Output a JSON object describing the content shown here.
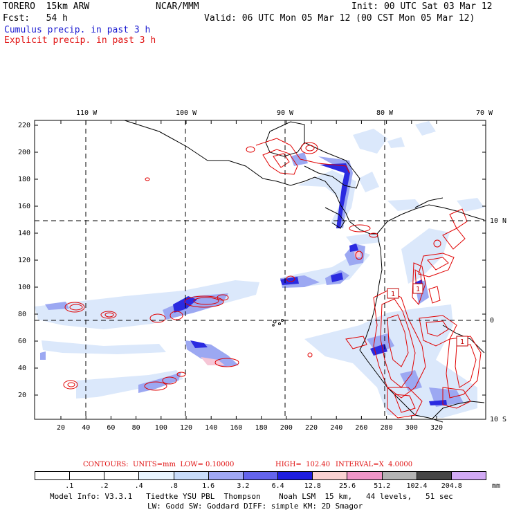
{
  "header": {
    "model": "TORERO  15km ARW",
    "org": "NCAR/MMM",
    "init": "Init: 00 UTC Sat 03 Mar 12",
    "fcst": "Fcst:   54 h",
    "valid": "Valid: 06 UTC Mon 05 Mar 12 (00 CST Mon 05 Mar 12)",
    "cumulus": "Cumulus precip. in past 3 h",
    "explicit": "Explicit precip. in past 3 h"
  },
  "colors": {
    "blue_text": "#1a1ad0",
    "red_text": "#e01010",
    "contour": "#e00000"
  },
  "map": {
    "lon_labels": [
      "110 W",
      "100 W",
      "90 W",
      "80 W",
      "70 W"
    ],
    "lat_labels": [
      "10 N",
      "0",
      "10 S"
    ],
    "y_ticks": [
      "220",
      "200",
      "180",
      "160",
      "140",
      "120",
      "100",
      "80",
      "60",
      "40",
      "20"
    ],
    "x_ticks": [
      "20",
      "40",
      "60",
      "80",
      "100",
      "120",
      "140",
      "160",
      "180",
      "200",
      "220",
      "240",
      "260",
      "280",
      "300",
      "320"
    ],
    "box_labels": [
      "1",
      "1",
      "1"
    ]
  },
  "contours_line": {
    "contours": "CONTOURS:  UNITS=mm  LOW= 0.10000",
    "high": "HIGH=  102.40",
    "interval": "INTERVAL=X  4.0000"
  },
  "legend": {
    "values": [
      ".1",
      ".2",
      ".4",
      ".8",
      "1.6",
      "3.2",
      "6.4",
      "12.8",
      "25.6",
      "51.2",
      "102.4",
      "204.8"
    ],
    "unit": "mm",
    "colors": [
      "#ffffff",
      "#ffffff",
      "#ffffff",
      "#e8f4ff",
      "#c8dcfa",
      "#a0a8f4",
      "#6464ec",
      "#1e1ee0",
      "#fad2d2",
      "#f096c8",
      "#b4b4b4",
      "#464646",
      "#d2aaf5"
    ]
  },
  "footer": {
    "line1": "Model Info: V3.3.1   Tiedtke YSU PBL  Thompson    Noah LSM  15 km,   44 levels,   51 sec",
    "line2": "LW: Godd SW: Goddard DIFF: simple KM: 2D Smagor"
  }
}
